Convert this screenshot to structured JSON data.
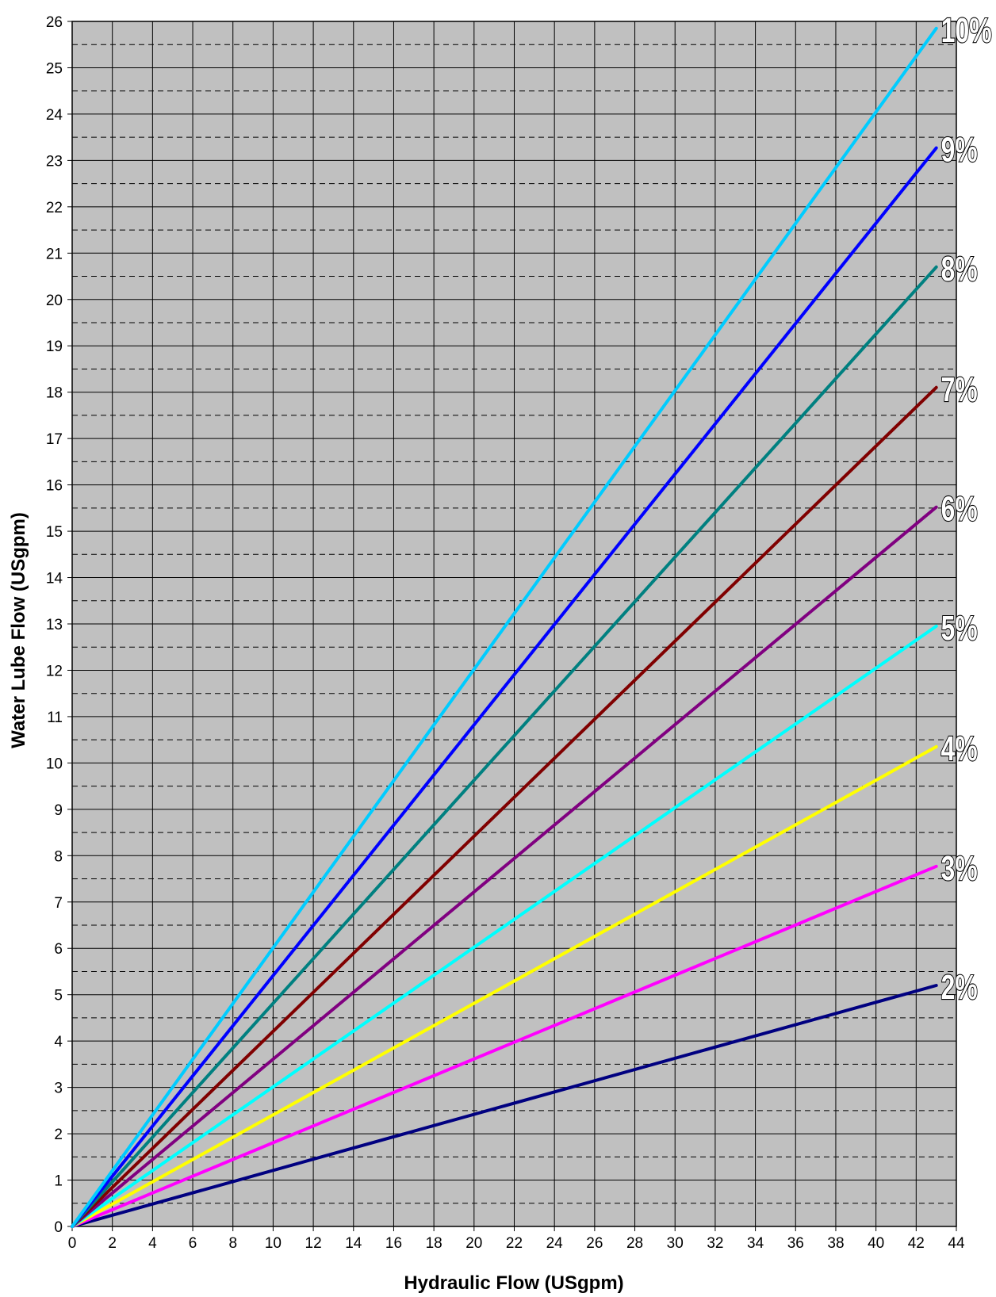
{
  "chart_data": {
    "type": "line",
    "xlabel": "Hydraulic Flow (USgpm)",
    "ylabel": "Water Lube Flow (USgpm)",
    "xlim": [
      0,
      44
    ],
    "ylim": [
      0,
      26
    ],
    "x_ticks": [
      0,
      2,
      4,
      6,
      8,
      10,
      12,
      14,
      16,
      18,
      20,
      22,
      24,
      26,
      28,
      30,
      32,
      34,
      36,
      38,
      40,
      42,
      44
    ],
    "y_ticks": [
      0,
      1,
      2,
      3,
      4,
      5,
      6,
      7,
      8,
      9,
      10,
      11,
      12,
      13,
      14,
      15,
      16,
      17,
      18,
      19,
      20,
      21,
      22,
      23,
      24,
      25,
      26
    ],
    "grid": true,
    "minor_grid_y": "dashed, every 0.5",
    "background": "#c0c0c0",
    "series": [
      {
        "name": "2%",
        "color": "#000080",
        "x": [
          0,
          43
        ],
        "y": [
          0,
          5.2
        ]
      },
      {
        "name": "3%",
        "color": "#ff00ff",
        "x": [
          0,
          43
        ],
        "y": [
          0,
          7.77
        ]
      },
      {
        "name": "4%",
        "color": "#ffff00",
        "x": [
          0,
          43
        ],
        "y": [
          0,
          10.35
        ]
      },
      {
        "name": "5%",
        "color": "#00ffff",
        "x": [
          0,
          43
        ],
        "y": [
          0,
          12.95
        ]
      },
      {
        "name": "6%",
        "color": "#800080",
        "x": [
          0,
          43
        ],
        "y": [
          0,
          15.52
        ]
      },
      {
        "name": "7%",
        "color": "#800000",
        "x": [
          0,
          43
        ],
        "y": [
          0,
          18.1
        ]
      },
      {
        "name": "8%",
        "color": "#008080",
        "x": [
          0,
          43
        ],
        "y": [
          0,
          20.7
        ]
      },
      {
        "name": "9%",
        "color": "#0000ff",
        "x": [
          0,
          43
        ],
        "y": [
          0,
          23.27
        ]
      },
      {
        "name": "10%",
        "color": "#00ccff",
        "x": [
          0,
          43
        ],
        "y": [
          0,
          25.85
        ]
      }
    ]
  }
}
